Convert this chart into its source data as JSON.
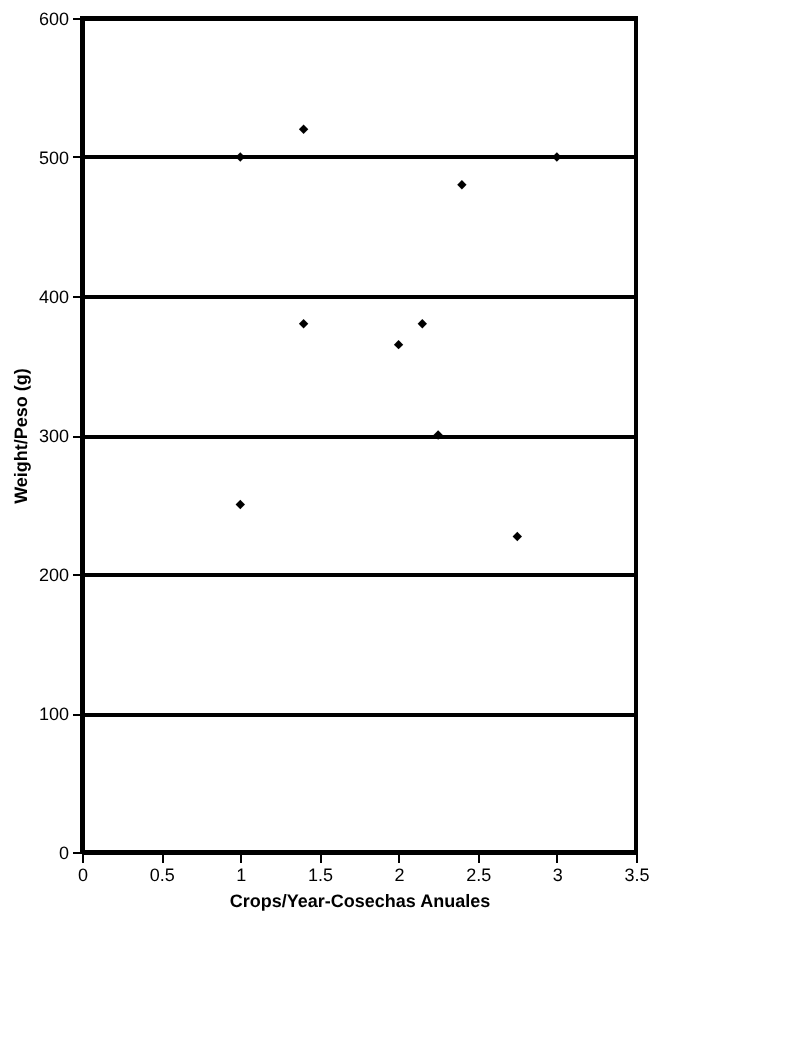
{
  "chart_data": {
    "type": "scatter",
    "xlabel": "Crops/Year-Cosechas Anuales",
    "ylabel": "Weight/Peso (g)",
    "x": [
      1.0,
      1.4,
      3.0,
      2.4,
      1.4,
      2.0,
      2.15,
      2.25,
      1.0,
      2.75
    ],
    "series": [
      {
        "color": "#000000",
        "values": [
          500,
          520,
          500,
          480,
          380,
          365,
          380,
          300,
          250,
          227
        ]
      }
    ],
    "xlim": [
      0,
      3.5
    ],
    "xticks": [
      0,
      0.5,
      1,
      1.5,
      2,
      2.5,
      3,
      3.5
    ],
    "ylim": [
      0,
      600
    ],
    "yticks": [
      0,
      100,
      200,
      300,
      400,
      500,
      600
    ],
    "grid": "y",
    "marker": "diamond"
  }
}
